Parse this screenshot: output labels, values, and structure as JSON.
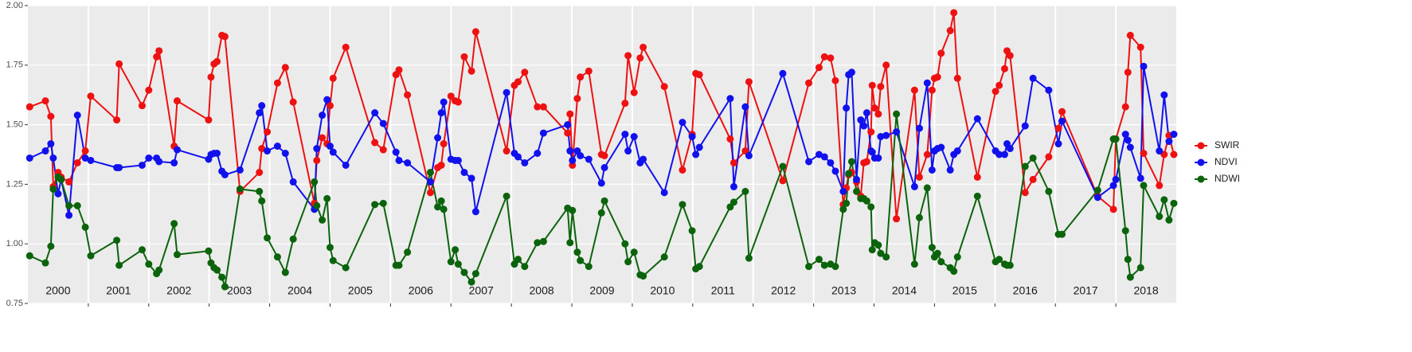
{
  "chart_data": {
    "type": "line",
    "x": [
      2000.03,
      2000.29,
      2000.38,
      2000.42,
      2000.5,
      2000.55,
      2000.68,
      2000.82,
      2000.95,
      2001.04,
      2001.47,
      2001.51,
      2001.89,
      2002.0,
      2002.13,
      2002.17,
      2002.42,
      2002.47,
      2002.99,
      2003.03,
      2003.08,
      2003.13,
      2003.21,
      2003.26,
      2003.51,
      2003.83,
      2003.87,
      2003.96,
      2004.13,
      2004.26,
      2004.39,
      2004.74,
      2004.78,
      2004.87,
      2004.95,
      2005.0,
      2005.05,
      2005.26,
      2005.74,
      2005.88,
      2006.09,
      2006.14,
      2006.28,
      2006.66,
      2006.78,
      2006.84,
      2006.88,
      2007.0,
      2007.07,
      2007.12,
      2007.22,
      2007.34,
      2007.41,
      2007.92,
      2008.05,
      2008.11,
      2008.22,
      2008.43,
      2008.53,
      2008.93,
      2008.97,
      2009.01,
      2009.09,
      2009.14,
      2009.28,
      2009.49,
      2009.54,
      2009.88,
      2009.93,
      2010.03,
      2010.13,
      2010.18,
      2010.53,
      2010.83,
      2010.99,
      2011.05,
      2011.11,
      2011.62,
      2011.68,
      2011.87,
      2011.93,
      2012.49,
      2012.92,
      2013.09,
      2013.18,
      2013.28,
      2013.36,
      2013.49,
      2013.54,
      2013.58,
      2013.63,
      2013.71,
      2013.78,
      2013.83,
      2013.88,
      2013.95,
      2013.97,
      2014.01,
      2014.07,
      2014.11,
      2014.2,
      2014.37,
      2014.67,
      2014.75,
      2014.88,
      2014.96,
      2015.0,
      2015.05,
      2015.11,
      2015.26,
      2015.32,
      2015.38,
      2015.71,
      2016.01,
      2016.07,
      2016.16,
      2016.2,
      2016.25,
      2016.5,
      2016.63,
      2016.89,
      2017.05,
      2017.11,
      2017.7,
      2017.96,
      2018.0,
      2018.16,
      2018.2,
      2018.24,
      2018.41,
      2018.46,
      2018.72,
      2018.8,
      2018.88,
      2018.96
    ],
    "series": [
      {
        "name": "SWIR",
        "color": "#ee1111",
        "values": [
          1.575,
          1.6,
          1.535,
          1.24,
          1.3,
          1.28,
          1.26,
          1.34,
          1.39,
          1.62,
          1.52,
          1.755,
          1.58,
          1.645,
          1.785,
          1.81,
          1.41,
          1.6,
          1.52,
          1.7,
          1.755,
          1.765,
          1.875,
          1.87,
          1.22,
          1.3,
          1.4,
          1.47,
          1.675,
          1.74,
          1.595,
          1.17,
          1.35,
          1.445,
          1.42,
          1.58,
          1.695,
          1.825,
          1.425,
          1.395,
          1.71,
          1.73,
          1.625,
          1.215,
          1.32,
          1.33,
          1.42,
          1.62,
          1.6,
          1.595,
          1.785,
          1.725,
          1.89,
          1.39,
          1.665,
          1.68,
          1.72,
          1.575,
          1.575,
          1.465,
          1.545,
          1.33,
          1.61,
          1.7,
          1.725,
          1.375,
          1.37,
          1.59,
          1.79,
          1.635,
          1.78,
          1.825,
          1.66,
          1.31,
          1.46,
          1.715,
          1.71,
          1.44,
          1.34,
          1.39,
          1.68,
          1.265,
          1.675,
          1.74,
          1.785,
          1.78,
          1.685,
          1.165,
          1.235,
          1.29,
          1.3,
          1.26,
          1.2,
          1.34,
          1.345,
          1.47,
          1.665,
          1.57,
          1.545,
          1.66,
          1.75,
          1.105,
          1.645,
          1.28,
          1.375,
          1.645,
          1.695,
          1.7,
          1.8,
          1.895,
          1.97,
          1.695,
          1.28,
          1.64,
          1.665,
          1.735,
          1.81,
          1.79,
          1.215,
          1.27,
          1.365,
          1.485,
          1.555,
          1.2,
          1.145,
          1.44,
          1.575,
          1.72,
          1.875,
          1.825,
          1.38,
          1.245,
          1.375,
          1.455,
          1.375
        ]
      },
      {
        "name": "NDVI",
        "color": "#1111ee",
        "values": [
          1.36,
          1.39,
          1.42,
          1.36,
          1.21,
          1.27,
          1.12,
          1.54,
          1.36,
          1.35,
          1.32,
          1.32,
          1.33,
          1.36,
          1.36,
          1.345,
          1.34,
          1.395,
          1.355,
          1.375,
          1.38,
          1.38,
          1.305,
          1.29,
          1.31,
          1.55,
          1.58,
          1.39,
          1.41,
          1.38,
          1.26,
          1.145,
          1.4,
          1.54,
          1.605,
          1.41,
          1.385,
          1.33,
          1.55,
          1.505,
          1.385,
          1.35,
          1.34,
          1.26,
          1.445,
          1.55,
          1.595,
          1.355,
          1.35,
          1.35,
          1.3,
          1.275,
          1.135,
          1.635,
          1.38,
          1.365,
          1.34,
          1.38,
          1.465,
          1.5,
          1.39,
          1.35,
          1.39,
          1.37,
          1.355,
          1.255,
          1.32,
          1.46,
          1.39,
          1.45,
          1.34,
          1.355,
          1.215,
          1.51,
          1.45,
          1.375,
          1.405,
          1.61,
          1.24,
          1.575,
          1.37,
          1.715,
          1.345,
          1.375,
          1.365,
          1.34,
          1.305,
          1.22,
          1.57,
          1.71,
          1.72,
          1.27,
          1.52,
          1.495,
          1.55,
          1.39,
          1.385,
          1.36,
          1.36,
          1.45,
          1.455,
          1.47,
          1.24,
          1.485,
          1.675,
          1.31,
          1.39,
          1.4,
          1.405,
          1.31,
          1.375,
          1.39,
          1.525,
          1.39,
          1.375,
          1.375,
          1.42,
          1.4,
          1.495,
          1.695,
          1.645,
          1.42,
          1.515,
          1.195,
          1.245,
          1.27,
          1.46,
          1.435,
          1.405,
          1.275,
          1.745,
          1.39,
          1.625,
          1.43,
          1.46
        ]
      },
      {
        "name": "NDWI",
        "color": "#0b640b",
        "values": [
          0.95,
          0.92,
          0.99,
          1.23,
          1.28,
          1.27,
          1.16,
          1.16,
          1.07,
          0.95,
          1.015,
          0.91,
          0.975,
          0.915,
          0.875,
          0.89,
          1.085,
          0.955,
          0.97,
          0.92,
          0.9,
          0.89,
          0.86,
          0.82,
          1.23,
          1.22,
          1.18,
          1.025,
          0.945,
          0.88,
          1.02,
          1.26,
          1.16,
          1.1,
          1.19,
          0.985,
          0.93,
          0.9,
          1.165,
          1.17,
          0.91,
          0.91,
          0.965,
          1.3,
          1.155,
          1.18,
          1.145,
          0.925,
          0.975,
          0.915,
          0.88,
          0.84,
          0.875,
          1.2,
          0.915,
          0.935,
          0.905,
          1.005,
          1.01,
          1.15,
          1.005,
          1.14,
          0.965,
          0.93,
          0.905,
          1.13,
          1.18,
          1.0,
          0.925,
          0.965,
          0.87,
          0.865,
          0.945,
          1.165,
          1.055,
          0.895,
          0.905,
          1.155,
          1.175,
          1.22,
          0.94,
          1.325,
          0.905,
          0.935,
          0.91,
          0.915,
          0.905,
          1.145,
          1.17,
          1.295,
          1.345,
          1.22,
          1.19,
          1.19,
          1.18,
          1.155,
          0.975,
          1.005,
          0.995,
          0.96,
          0.945,
          1.545,
          0.915,
          1.11,
          1.235,
          0.985,
          0.945,
          0.96,
          0.925,
          0.9,
          0.885,
          0.945,
          1.2,
          0.925,
          0.935,
          0.915,
          0.91,
          0.91,
          1.325,
          1.36,
          1.22,
          1.04,
          1.04,
          1.225,
          1.44,
          1.44,
          1.055,
          0.935,
          0.86,
          0.9,
          1.245,
          1.115,
          1.185,
          1.1,
          1.17
        ]
      }
    ],
    "xlim": [
      2000,
      2019
    ],
    "xticks": [
      2001,
      2002,
      2003,
      2004,
      2005,
      2006,
      2007,
      2008,
      2009,
      2010,
      2011,
      2012,
      2013,
      2014,
      2015,
      2016,
      2017,
      2018
    ],
    "year_labels": [
      "2000",
      "2001",
      "2002",
      "2003",
      "2004",
      "2005",
      "2006",
      "2007",
      "2008",
      "2009",
      "2010",
      "2011",
      "2012",
      "2013",
      "2014",
      "2015",
      "2016",
      "2017",
      "2018"
    ],
    "ylim": [
      0.75,
      2.0
    ],
    "yticks": [
      0.75,
      {
        "value": 1,
        "label": "1.00"
      },
      1.25,
      {
        "value": 1.5,
        "label": "1.50"
      },
      1.75,
      {
        "value": 2,
        "label": "2.00"
      }
    ],
    "grid": true,
    "legend": "right"
  }
}
